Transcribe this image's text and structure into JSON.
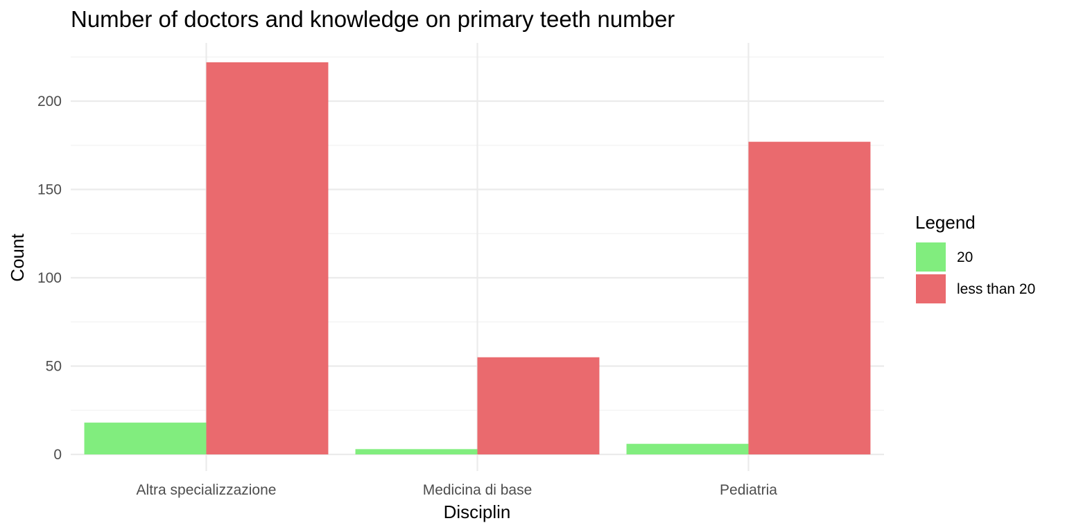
{
  "colors": {
    "background": "#ffffff",
    "grid_major": "#ebebeb",
    "grid_minor": "#f2f2f2",
    "series_20": "#81ed7e",
    "series_less_than_20": "#ea6a6e"
  },
  "chart_data": {
    "type": "bar",
    "title": "Number of doctors and knowledge on primary teeth number",
    "xlabel": "Disciplin",
    "ylabel": "Count",
    "ylim": [
      0,
      232
    ],
    "yticks": [
      0,
      50,
      100,
      150,
      200
    ],
    "grid": true,
    "legend_title": "Legend",
    "legend_position": "right",
    "categories": [
      "Altra specializzazione",
      "Medicina di base",
      "Pediatria"
    ],
    "series": [
      {
        "name": "20",
        "color": "#81ed7e",
        "values": [
          18,
          3,
          6
        ]
      },
      {
        "name": "less than 20",
        "color": "#ea6a6e",
        "values": [
          222,
          55,
          177
        ]
      }
    ]
  }
}
